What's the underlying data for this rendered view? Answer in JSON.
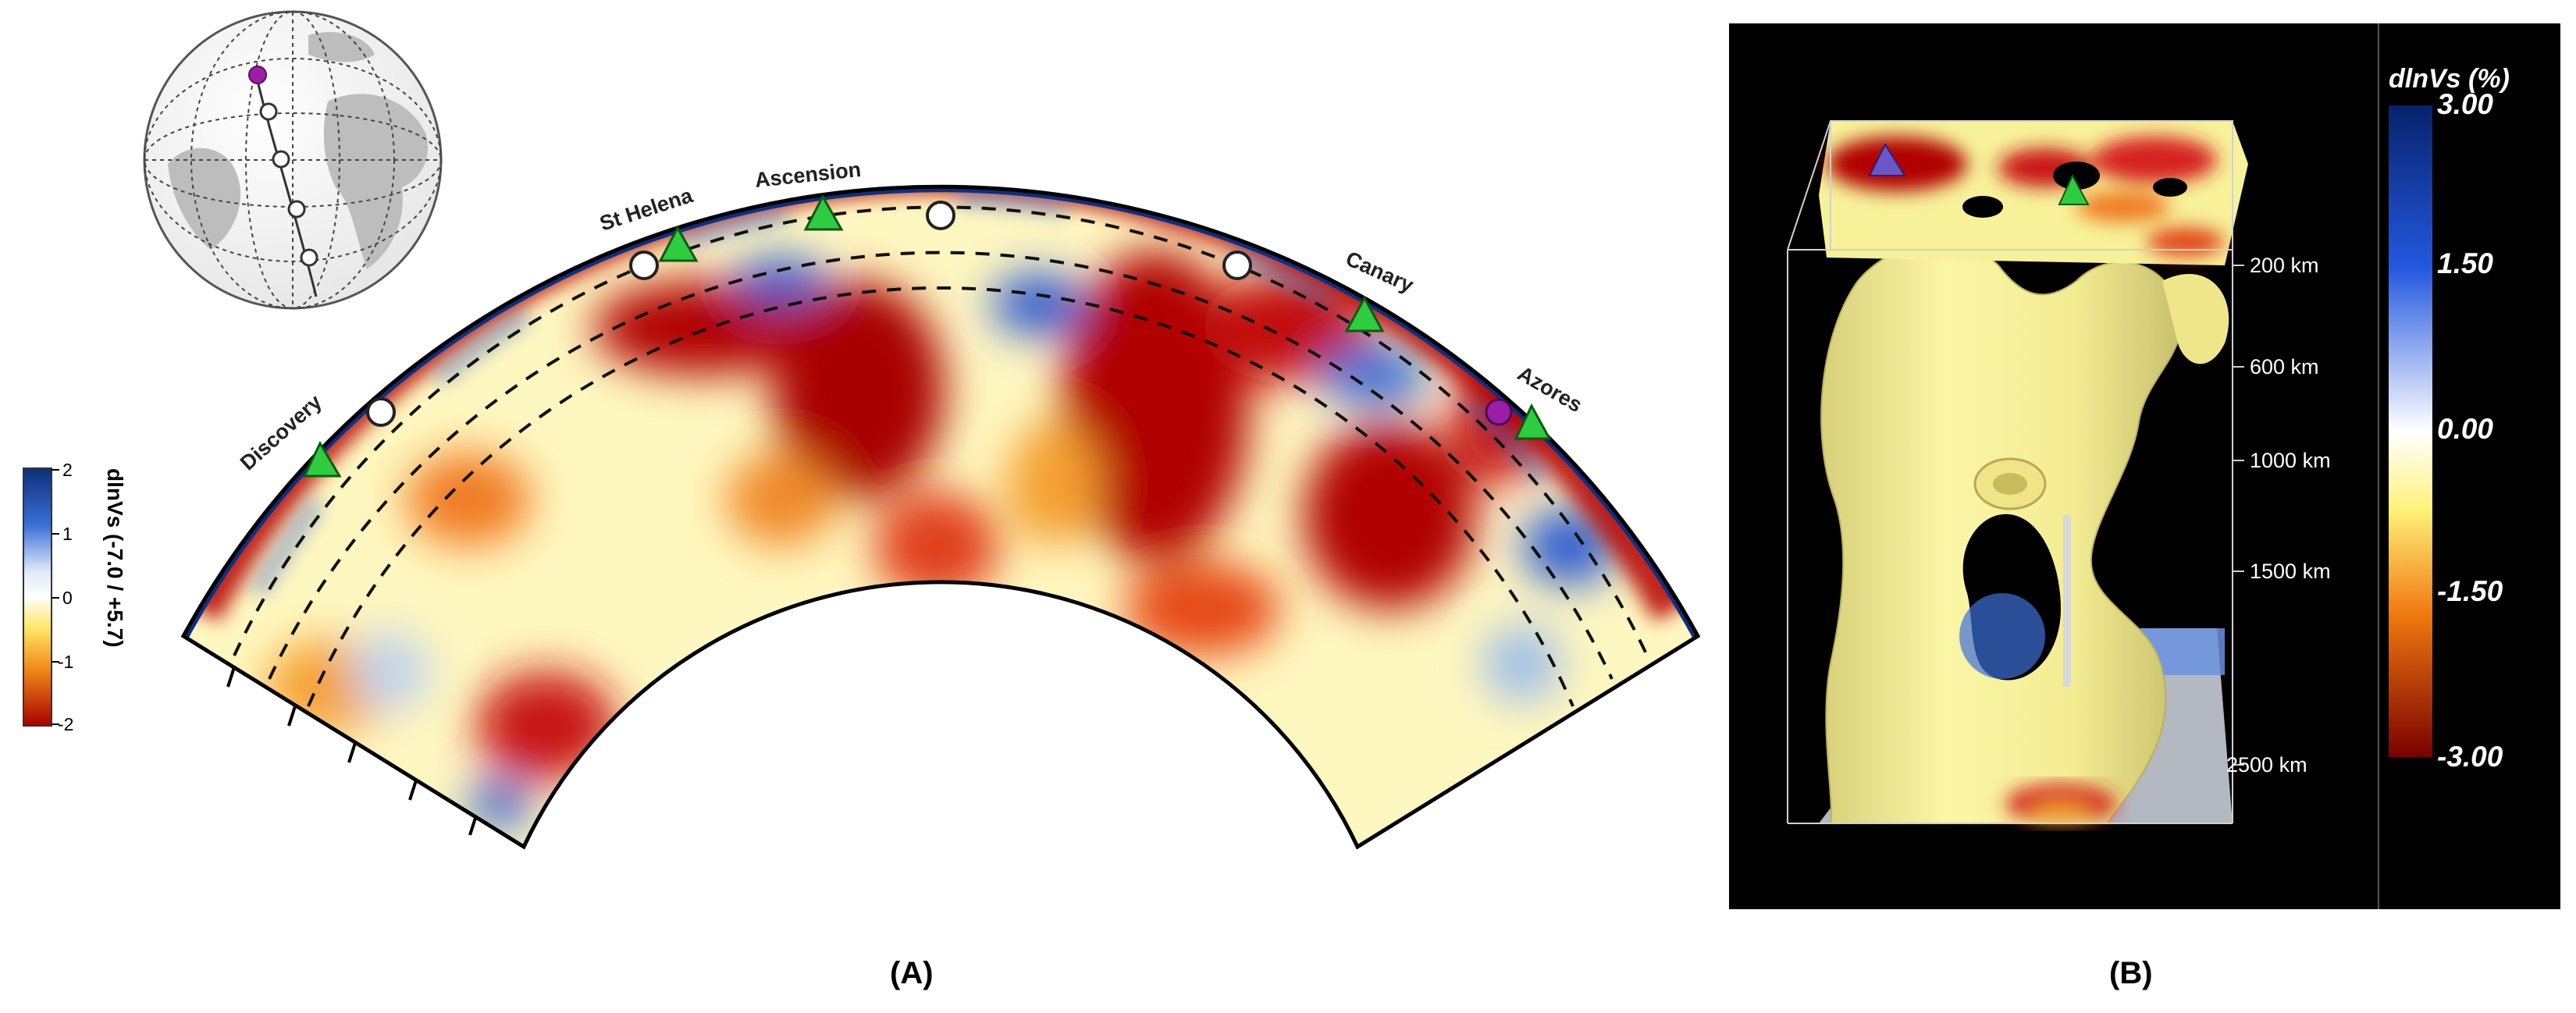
{
  "panel_a": {
    "label": "(A)",
    "hotspots": [
      {
        "name": "Discovery"
      },
      {
        "name": "St Helena"
      },
      {
        "name": "Ascension"
      },
      {
        "name": "Canary"
      },
      {
        "name": "Azores"
      }
    ],
    "colorbar": {
      "title": "dlnVs (-7.0 / +5.7)",
      "ticks": [
        "2",
        "1",
        "0",
        "-1",
        "-2"
      ]
    }
  },
  "panel_b": {
    "label": "(B)",
    "colorbar": {
      "title": "dlnVs (%)",
      "ticks": [
        "3.00",
        "1.50",
        "0.00",
        "-1.50",
        "-3.00"
      ]
    },
    "depth_labels": [
      "200 km",
      "600 km",
      "1000 km",
      "1500 km",
      "2500 km"
    ]
  },
  "colors": {
    "slow": "#b30000",
    "fast": "#1a3fa8",
    "neutral": "#fff7c0",
    "hotspot_marker": "#2ecc40",
    "source_marker": "#9b1fa6",
    "background_b": "#000000",
    "plume": "#f7f29a"
  }
}
